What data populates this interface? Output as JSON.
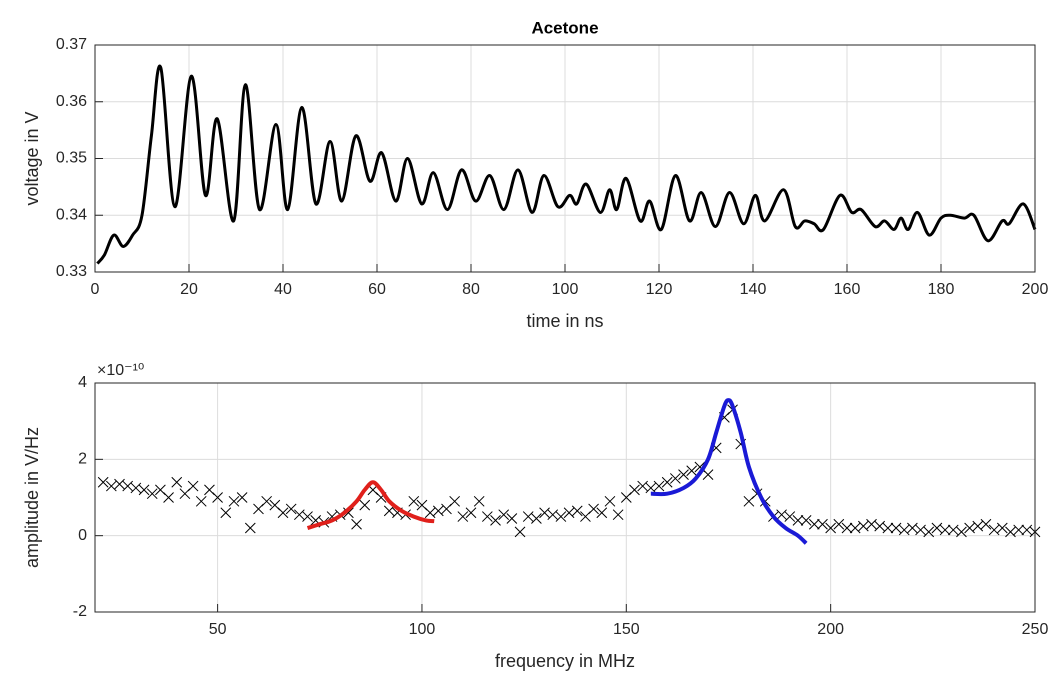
{
  "chart_data": [
    {
      "type": "line",
      "title": "Acetone",
      "x_label": "time in ns",
      "y_label": "voltage in V",
      "xlim": [
        0,
        200
      ],
      "ylim": [
        0.33,
        0.37
      ],
      "xticks": [
        0,
        20,
        40,
        60,
        80,
        100,
        120,
        140,
        160,
        180,
        200
      ],
      "yticks": [
        0.33,
        0.34,
        0.35,
        0.36,
        0.37
      ],
      "grid": true,
      "x": [
        0.5,
        2,
        4,
        6,
        8,
        10,
        12,
        14,
        17,
        20.5,
        23.5,
        26,
        29.5,
        32,
        35,
        38.5,
        41,
        44,
        47,
        50,
        52.5,
        55.5,
        58.5,
        61,
        64,
        66.5,
        69.5,
        72,
        75,
        78,
        81,
        84,
        87,
        90,
        93,
        95.5,
        98.5,
        101,
        102.5,
        104.5,
        107.5,
        109.5,
        111,
        113,
        116,
        118,
        120.5,
        123.5,
        126.5,
        129,
        132,
        135,
        138,
        140.5,
        142.5,
        146.5,
        149,
        151,
        153,
        155,
        158.5,
        161,
        163,
        166,
        168,
        170,
        171.5,
        173,
        175,
        177.5,
        180,
        182,
        185,
        187,
        190,
        193,
        194.5,
        197.5,
        200
      ],
      "series": [
        {
          "color": "#000000",
          "values": [
            0.3315,
            0.333,
            0.3365,
            0.3345,
            0.3365,
            0.34,
            0.354,
            0.366,
            0.3415,
            0.3645,
            0.3435,
            0.357,
            0.339,
            0.363,
            0.341,
            0.356,
            0.341,
            0.359,
            0.342,
            0.353,
            0.3425,
            0.354,
            0.346,
            0.351,
            0.3425,
            0.35,
            0.342,
            0.3475,
            0.341,
            0.348,
            0.3425,
            0.347,
            0.341,
            0.348,
            0.3405,
            0.347,
            0.3415,
            0.3435,
            0.342,
            0.3455,
            0.3405,
            0.3445,
            0.341,
            0.3465,
            0.339,
            0.3425,
            0.3375,
            0.347,
            0.339,
            0.344,
            0.338,
            0.344,
            0.3385,
            0.3435,
            0.339,
            0.3445,
            0.338,
            0.339,
            0.3385,
            0.3375,
            0.3435,
            0.3405,
            0.341,
            0.338,
            0.339,
            0.3375,
            0.3395,
            0.3375,
            0.3405,
            0.3365,
            0.3395,
            0.34,
            0.3395,
            0.34,
            0.3355,
            0.339,
            0.3385,
            0.342,
            0.3375
          ]
        }
      ]
    },
    {
      "type": "scatter",
      "x_label": "frequency in MHz",
      "y_label": "amplitude in V/Hz",
      "y_exponent": "×10⁻¹⁰",
      "xlim": [
        20,
        250
      ],
      "ylim": [
        -2,
        4
      ],
      "xticks": [
        50,
        100,
        150,
        200,
        250
      ],
      "yticks": [
        -2,
        0,
        2,
        4
      ],
      "grid": true,
      "series": [
        {
          "type": "scatter",
          "color": "#000000",
          "x": [
            22,
            24,
            26,
            28,
            30,
            32,
            34,
            36,
            38,
            40,
            42,
            44,
            46,
            48,
            50,
            52,
            54,
            56,
            58,
            60,
            62,
            64,
            66,
            68,
            70,
            72,
            74,
            76,
            78,
            80,
            82,
            84,
            86,
            88,
            90,
            92,
            94,
            96,
            98,
            100,
            102,
            104,
            106,
            108,
            110,
            112,
            114,
            116,
            118,
            120,
            122,
            124,
            126,
            128,
            130,
            132,
            134,
            136,
            138,
            140,
            142,
            144,
            146,
            148,
            150,
            152,
            154,
            156,
            158,
            160,
            162,
            164,
            166,
            168,
            170,
            172,
            174,
            176,
            178,
            180,
            182,
            184,
            186,
            188,
            190,
            192,
            194,
            196,
            198,
            200,
            202,
            204,
            206,
            208,
            210,
            212,
            214,
            216,
            218,
            220,
            222,
            224,
            226,
            228,
            230,
            232,
            234,
            236,
            238,
            240,
            242,
            244,
            246,
            248,
            250
          ],
          "values": [
            1.4,
            1.3,
            1.35,
            1.3,
            1.25,
            1.2,
            1.1,
            1.2,
            1.0,
            1.4,
            1.1,
            1.3,
            0.9,
            1.2,
            1.0,
            0.6,
            0.9,
            1.0,
            0.2,
            0.7,
            0.9,
            0.8,
            0.6,
            0.7,
            0.55,
            0.5,
            0.4,
            0.35,
            0.5,
            0.55,
            0.6,
            0.3,
            0.8,
            1.2,
            1.0,
            0.65,
            0.6,
            0.55,
            0.9,
            0.8,
            0.6,
            0.65,
            0.7,
            0.9,
            0.5,
            0.6,
            0.9,
            0.5,
            0.4,
            0.55,
            0.45,
            0.1,
            0.5,
            0.45,
            0.6,
            0.55,
            0.5,
            0.6,
            0.65,
            0.5,
            0.7,
            0.6,
            0.9,
            0.55,
            1.0,
            1.2,
            1.3,
            1.25,
            1.3,
            1.4,
            1.5,
            1.6,
            1.7,
            1.8,
            1.6,
            2.3,
            3.1,
            3.3,
            2.4,
            0.9,
            1.1,
            0.9,
            0.5,
            0.55,
            0.5,
            0.4,
            0.4,
            0.3,
            0.3,
            0.2,
            0.3,
            0.2,
            0.2,
            0.25,
            0.3,
            0.25,
            0.2,
            0.2,
            0.15,
            0.2,
            0.15,
            0.1,
            0.2,
            0.15,
            0.15,
            0.1,
            0.2,
            0.25,
            0.3,
            0.15,
            0.2,
            0.1,
            0.15,
            0.15,
            0.1
          ]
        },
        {
          "type": "line",
          "color": "#e0201b",
          "x": [
            72,
            75,
            78,
            81,
            84,
            86,
            88,
            90,
            92,
            95,
            98,
            101,
            103
          ],
          "values": [
            0.2,
            0.3,
            0.4,
            0.6,
            0.9,
            1.2,
            1.4,
            1.2,
            0.9,
            0.65,
            0.5,
            0.4,
            0.38
          ]
        },
        {
          "type": "line",
          "color": "#1a1ad6",
          "x": [
            156,
            160,
            164,
            167,
            170,
            172,
            174,
            175,
            176,
            178,
            180,
            183,
            186,
            189,
            192,
            194
          ],
          "values": [
            1.1,
            1.1,
            1.25,
            1.5,
            2.0,
            2.7,
            3.4,
            3.55,
            3.4,
            2.7,
            1.8,
            1.0,
            0.5,
            0.2,
            0.0,
            -0.2
          ]
        }
      ]
    }
  ]
}
